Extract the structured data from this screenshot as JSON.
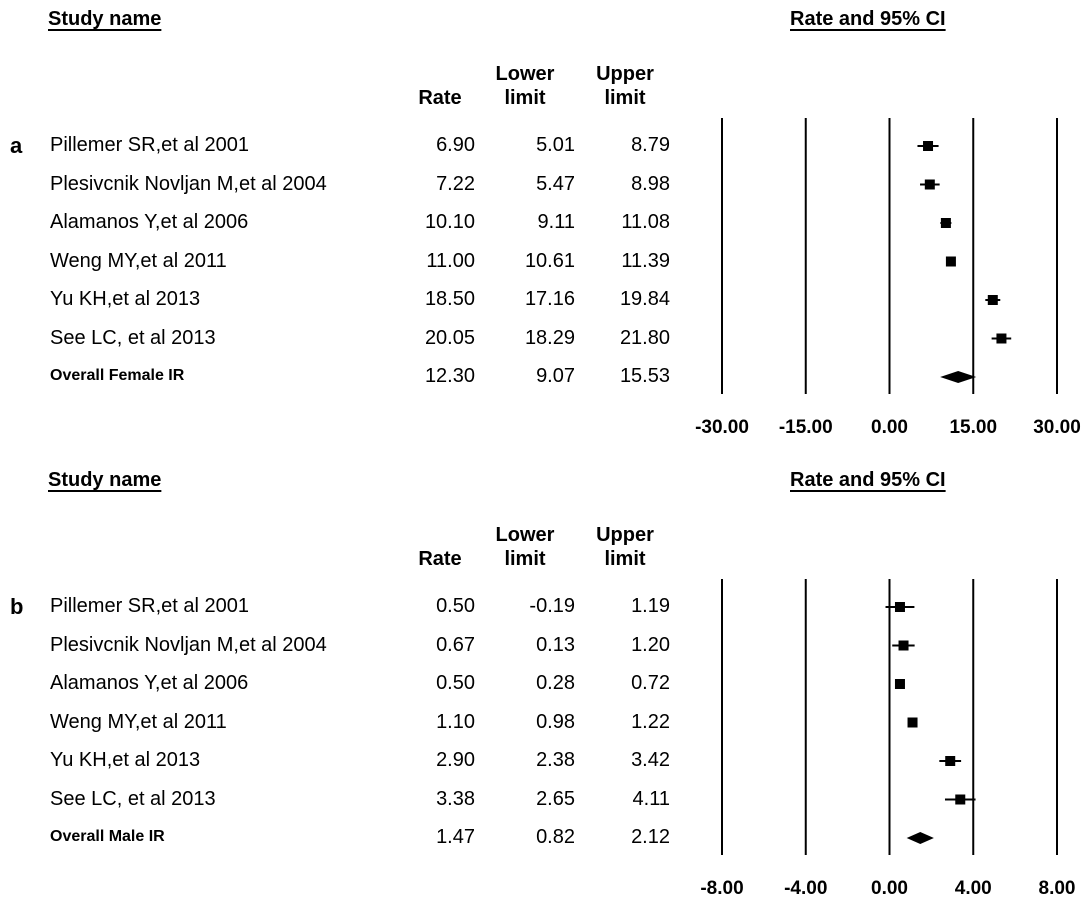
{
  "chart_data": [
    {
      "type": "forest",
      "panel_label": "a",
      "study_header": "Study name",
      "plot_header": "Rate and 95% CI",
      "columns": {
        "rate": "Rate",
        "lower": "Lower limit",
        "upper": "Upper limit"
      },
      "studies": [
        {
          "name": "Pillemer SR,et al 2001",
          "rate": "6.90",
          "lower": "5.01",
          "upper": "8.79"
        },
        {
          "name": "Plesivcnik Novljan M,et al 2004",
          "rate": "7.22",
          "lower": "5.47",
          "upper": "8.98"
        },
        {
          "name": "Alamanos Y,et al 2006",
          "rate": "10.10",
          "lower": "9.11",
          "upper": "11.08"
        },
        {
          "name": "Weng MY,et al 2011",
          "rate": "11.00",
          "lower": "10.61",
          "upper": "11.39"
        },
        {
          "name": "Yu KH,et al 2013",
          "rate": "18.50",
          "lower": "17.16",
          "upper": "19.84"
        },
        {
          "name": "See LC, et al 2013",
          "rate": "20.05",
          "lower": "18.29",
          "upper": "21.80"
        }
      ],
      "overall": {
        "name": "Overall Female IR",
        "rate": "12.30",
        "lower": "9.07",
        "upper": "15.53"
      },
      "xlim": [
        -30,
        30
      ],
      "xticks": [
        -30,
        -15,
        0,
        15,
        30
      ],
      "xtick_labels": [
        "-30.00",
        "-15.00",
        "0.00",
        "15.00",
        "30.00"
      ]
    },
    {
      "type": "forest",
      "panel_label": "b",
      "study_header": "Study name",
      "plot_header": "Rate and 95% CI",
      "columns": {
        "rate": "Rate",
        "lower": "Lower limit",
        "upper": "Upper limit"
      },
      "studies": [
        {
          "name": "Pillemer SR,et al 2001",
          "rate": "0.50",
          "lower": "-0.19",
          "upper": "1.19"
        },
        {
          "name": "Plesivcnik Novljan M,et al 2004",
          "rate": "0.67",
          "lower": "0.13",
          "upper": "1.20"
        },
        {
          "name": "Alamanos Y,et al 2006",
          "rate": "0.50",
          "lower": "0.28",
          "upper": "0.72"
        },
        {
          "name": "Weng MY,et al 2011",
          "rate": "1.10",
          "lower": "0.98",
          "upper": "1.22"
        },
        {
          "name": "Yu KH,et al 2013",
          "rate": "2.90",
          "lower": "2.38",
          "upper": "3.42"
        },
        {
          "name": "See LC, et al 2013",
          "rate": "3.38",
          "lower": "2.65",
          "upper": "4.11"
        }
      ],
      "overall": {
        "name": "Overall Male IR",
        "rate": "1.47",
        "lower": "0.82",
        "upper": "2.12"
      },
      "xlim": [
        -8,
        8
      ],
      "xticks": [
        -8,
        -4,
        0,
        4,
        8
      ],
      "xtick_labels": [
        "-8.00",
        "-4.00",
        "0.00",
        "4.00",
        "8.00"
      ]
    }
  ]
}
